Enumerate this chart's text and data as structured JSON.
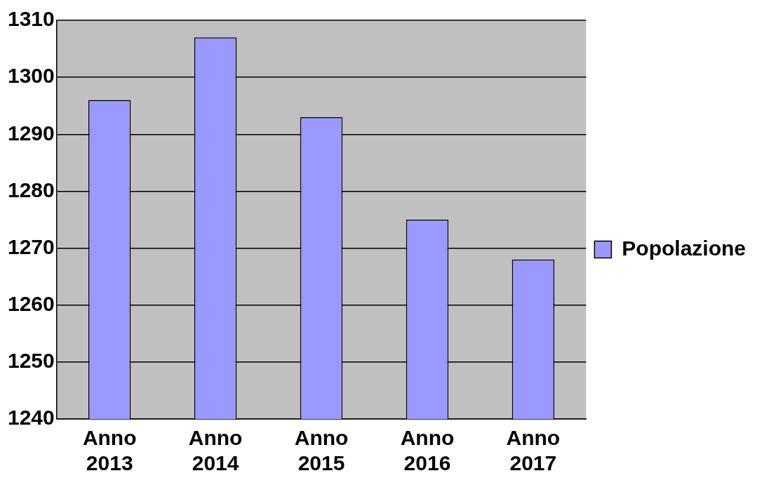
{
  "chart_data": {
    "type": "bar",
    "categories": [
      "Anno 2013",
      "Anno 2014",
      "Anno 2015",
      "Anno 2016",
      "Anno 2017"
    ],
    "series": [
      {
        "name": "Popolazione",
        "color": "#9999ff",
        "values": [
          1296,
          1307,
          1293,
          1275,
          1268
        ]
      }
    ],
    "ylim": [
      1240,
      1310
    ],
    "yticks": [
      1240,
      1250,
      1260,
      1270,
      1280,
      1290,
      1300,
      1310
    ],
    "grid": "y",
    "legend": "right"
  }
}
